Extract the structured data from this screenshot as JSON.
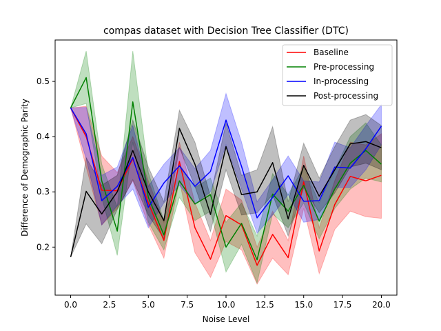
{
  "chart_data": {
    "type": "line",
    "title": "compas dataset with Decision Tree Classifier (DTC)",
    "xlabel": "Noise Level",
    "ylabel": "Difference of Demographic Parity",
    "xlim": [
      -1.0,
      21.0
    ],
    "ylim": [
      0.113,
      0.575
    ],
    "xticks": [
      0.0,
      2.5,
      5.0,
      7.5,
      10.0,
      12.5,
      15.0,
      17.5,
      20.0
    ],
    "xtick_labels": [
      "0.0",
      "2.5",
      "5.0",
      "7.5",
      "10.0",
      "12.5",
      "15.0",
      "17.5",
      "20.0"
    ],
    "yticks": [
      0.2,
      0.3,
      0.4,
      0.5
    ],
    "ytick_labels": [
      "0.2",
      "0.3",
      "0.4",
      "0.5"
    ],
    "grid": false,
    "legend_position": "top-right",
    "x": [
      0,
      1,
      2,
      3,
      4,
      5,
      6,
      7,
      8,
      9,
      10,
      11,
      12,
      13,
      14,
      15,
      16,
      17,
      18,
      19,
      20
    ],
    "series": [
      {
        "name": "Baseline",
        "color": "#ff0000",
        "values": [
          0.452,
          0.4,
          0.303,
          0.302,
          0.36,
          0.28,
          0.212,
          0.355,
          0.235,
          0.178,
          0.257,
          0.24,
          0.167,
          0.223,
          0.181,
          0.318,
          0.193,
          0.277,
          0.328,
          0.32,
          0.33
        ],
        "lower": [
          0.452,
          0.345,
          0.24,
          0.27,
          0.32,
          0.24,
          0.18,
          0.32,
          0.19,
          0.145,
          0.21,
          0.195,
          0.133,
          0.18,
          0.15,
          0.27,
          0.152,
          0.232,
          0.265,
          0.255,
          0.252
        ],
        "upper": [
          0.452,
          0.455,
          0.365,
          0.335,
          0.4,
          0.32,
          0.245,
          0.39,
          0.28,
          0.212,
          0.305,
          0.285,
          0.2,
          0.265,
          0.212,
          0.365,
          0.235,
          0.32,
          0.39,
          0.385,
          0.405
        ]
      },
      {
        "name": "Pre-processing",
        "color": "#008000",
        "values": [
          0.452,
          0.507,
          0.32,
          0.229,
          0.463,
          0.29,
          0.222,
          0.32,
          0.278,
          0.295,
          0.2,
          0.243,
          0.177,
          0.296,
          0.265,
          0.312,
          0.247,
          0.305,
          0.352,
          0.375,
          0.35
        ],
        "lower": [
          0.452,
          0.46,
          0.29,
          0.185,
          0.39,
          0.245,
          0.195,
          0.29,
          0.248,
          0.265,
          0.155,
          0.205,
          0.135,
          0.26,
          0.235,
          0.28,
          0.215,
          0.27,
          0.305,
          0.325,
          0.318
        ],
        "upper": [
          0.452,
          0.555,
          0.35,
          0.272,
          0.555,
          0.335,
          0.248,
          0.35,
          0.308,
          0.325,
          0.245,
          0.28,
          0.22,
          0.333,
          0.295,
          0.345,
          0.28,
          0.34,
          0.4,
          0.425,
          0.385
        ]
      },
      {
        "name": "In-processing",
        "color": "#0000ff",
        "values": [
          0.452,
          0.405,
          0.284,
          0.31,
          0.362,
          0.272,
          0.316,
          0.347,
          0.31,
          0.337,
          0.43,
          0.346,
          0.253,
          0.29,
          0.329,
          0.283,
          0.284,
          0.345,
          0.343,
          0.378,
          0.419
        ],
        "lower": [
          0.452,
          0.36,
          0.24,
          0.275,
          0.305,
          0.235,
          0.28,
          0.312,
          0.278,
          0.3,
          0.385,
          0.305,
          0.225,
          0.258,
          0.295,
          0.245,
          0.25,
          0.308,
          0.308,
          0.34,
          0.385
        ],
        "upper": [
          0.452,
          0.453,
          0.33,
          0.345,
          0.42,
          0.31,
          0.35,
          0.38,
          0.342,
          0.375,
          0.478,
          0.39,
          0.282,
          0.322,
          0.365,
          0.32,
          0.318,
          0.39,
          0.38,
          0.42,
          0.458
        ]
      },
      {
        "name": "Post-processing",
        "color": "#000000",
        "values": [
          0.182,
          0.301,
          0.26,
          0.3,
          0.375,
          0.3,
          0.248,
          0.415,
          0.35,
          0.259,
          0.382,
          0.295,
          0.3,
          0.353,
          0.251,
          0.348,
          0.292,
          0.34,
          0.387,
          0.391,
          0.38
        ],
        "lower": [
          0.182,
          0.242,
          0.206,
          0.268,
          0.322,
          0.258,
          0.215,
          0.38,
          0.31,
          0.228,
          0.34,
          0.258,
          0.262,
          0.295,
          0.22,
          0.308,
          0.262,
          0.298,
          0.345,
          0.352,
          0.34
        ],
        "upper": [
          0.182,
          0.362,
          0.312,
          0.33,
          0.43,
          0.345,
          0.282,
          0.448,
          0.39,
          0.292,
          0.425,
          0.33,
          0.34,
          0.418,
          0.282,
          0.388,
          0.325,
          0.382,
          0.43,
          0.44,
          0.42
        ]
      }
    ]
  }
}
